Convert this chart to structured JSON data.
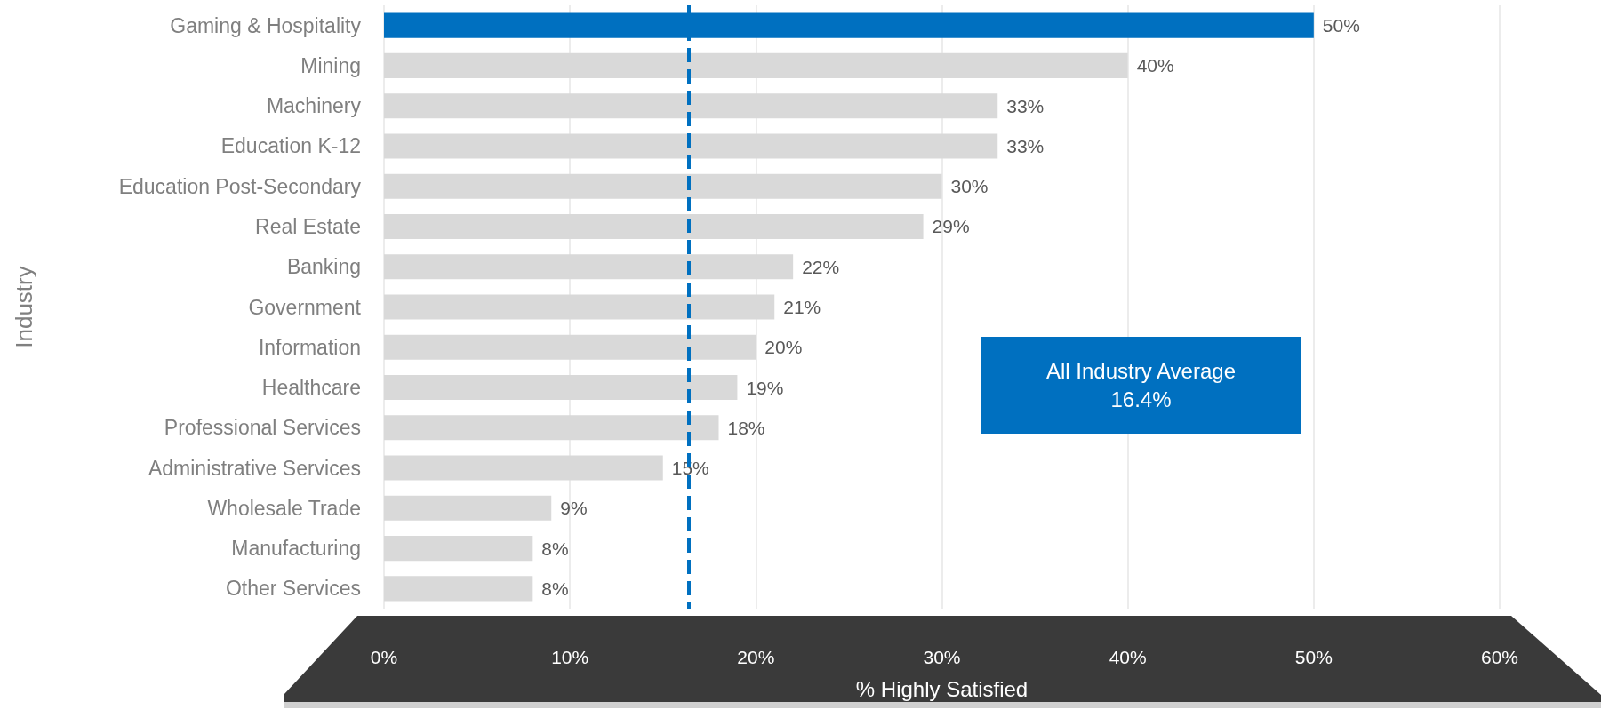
{
  "chart_data": {
    "type": "bar",
    "orientation": "horizontal",
    "xlabel": "% Highly Satisfied",
    "ylabel": "Industry",
    "categories": [
      "Gaming & Hospitality",
      "Mining",
      "Machinery",
      "Education K-12",
      "Education Post-Secondary",
      "Real Estate",
      "Banking",
      "Government",
      "Information",
      "Healthcare",
      "Professional Services",
      "Administrative Services",
      "Wholesale Trade",
      "Manufacturing",
      "Other Services"
    ],
    "values": [
      50,
      40,
      33,
      33,
      30,
      29,
      22,
      21,
      20,
      19,
      18,
      15,
      9,
      8,
      8
    ],
    "value_labels": [
      "50%",
      "40%",
      "33%",
      "33%",
      "30%",
      "29%",
      "22%",
      "21%",
      "20%",
      "19%",
      "18%",
      "15%",
      "9%",
      "8%",
      "8%"
    ],
    "colors": [
      "#0070c0",
      "#d9d9d9",
      "#d9d9d9",
      "#d9d9d9",
      "#d9d9d9",
      "#d9d9d9",
      "#d9d9d9",
      "#d9d9d9",
      "#d9d9d9",
      "#d9d9d9",
      "#d9d9d9",
      "#d9d9d9",
      "#d9d9d9",
      "#d9d9d9",
      "#d9d9d9"
    ],
    "xlim": [
      0,
      60
    ],
    "xticks": [
      {
        "value": 0,
        "label": "0%"
      },
      {
        "value": 10,
        "label": "10%"
      },
      {
        "value": 20,
        "label": "20%"
      },
      {
        "value": 30,
        "label": "30%"
      },
      {
        "value": 40,
        "label": "40%"
      },
      {
        "value": 50,
        "label": "50%"
      },
      {
        "value": 60,
        "label": "60%"
      }
    ],
    "grid": "x",
    "annotations": [
      "All Industry Average\n16.4%"
    ],
    "ref_lines": [
      {
        "axis": "x",
        "value": 16.4,
        "color": "#0070c0",
        "line_style": "dashed"
      }
    ]
  }
}
